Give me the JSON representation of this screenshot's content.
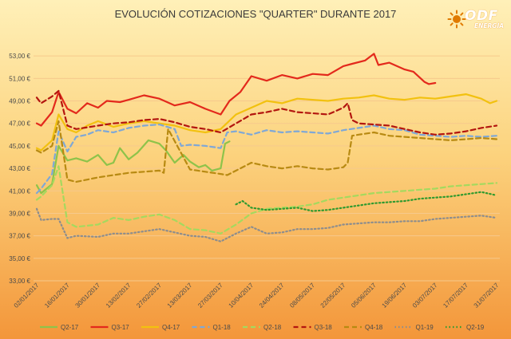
{
  "chart_data": {
    "type": "line",
    "title": "EVOLUCIÓN COTIZACIONES \"QUARTER\" DURANTE 2017",
    "y_tick_labels": [
      "33,00 €",
      "35,00 €",
      "37,00 €",
      "39,00 €",
      "41,00 €",
      "43,00 €",
      "45,00 €",
      "47,00 €",
      "49,00 €",
      "51,00 €",
      "53,00 €"
    ],
    "y_ticks": [
      33,
      35,
      37,
      39,
      41,
      43,
      45,
      47,
      49,
      51,
      53
    ],
    "ylim": [
      33,
      55
    ],
    "x_tick_labels": [
      "02/01/2017",
      "16/01/2017",
      "30/01/2017",
      "13/02/2017",
      "27/02/2017",
      "13/03/2017",
      "27/03/2017",
      "10/04/2017",
      "24/04/2017",
      "08/05/2017",
      "22/05/2017",
      "05/06/2017",
      "19/06/2017",
      "03/07/2017",
      "17/07/2017",
      "31/07/2017"
    ],
    "x_range": [
      "02/01/2017",
      "31/07/2017"
    ],
    "grid": true,
    "legend": "bottom",
    "series": [
      {
        "name": "Q2-17",
        "color": "#8ec34a",
        "dash": "solid",
        "dates": [
          "02/01/2017",
          "04/01/2017",
          "09/01/2017",
          "12/01/2017",
          "16/01/2017",
          "20/01/2017",
          "25/01/2017",
          "30/01/2017",
          "03/02/2017",
          "06/02/2017",
          "09/02/2017",
          "13/02/2017",
          "17/02/2017",
          "22/02/2017",
          "27/02/2017",
          "02/03/2017",
          "06/03/2017",
          "10/03/2017",
          "13/03/2017",
          "17/03/2017",
          "20/03/2017",
          "23/03/2017",
          "27/03/2017",
          "29/03/2017",
          "31/03/2017"
        ],
        "values": [
          41.5,
          40.8,
          41.6,
          45.0,
          43.7,
          43.9,
          43.6,
          44.2,
          43.3,
          43.5,
          44.8,
          43.8,
          44.4,
          45.5,
          45.2,
          44.6,
          43.5,
          44.2,
          43.6,
          43.1,
          43.3,
          42.8,
          43.0,
          45.2,
          45.4
        ]
      },
      {
        "name": "Q3-17",
        "color": "#e3291c",
        "dash": "solid",
        "dates": [
          "02/01/2017",
          "04/01/2017",
          "09/01/2017",
          "12/01/2017",
          "16/01/2017",
          "20/01/2017",
          "25/01/2017",
          "30/01/2017",
          "03/02/2017",
          "09/02/2017",
          "13/02/2017",
          "20/02/2017",
          "27/02/2017",
          "06/03/2017",
          "13/03/2017",
          "20/03/2017",
          "27/03/2017",
          "31/03/2017",
          "05/04/2017",
          "10/04/2017",
          "17/04/2017",
          "24/04/2017",
          "01/05/2017",
          "08/05/2017",
          "15/05/2017",
          "22/05/2017",
          "26/05/2017",
          "01/06/2017",
          "05/06/2017",
          "07/06/2017",
          "12/06/2017",
          "19/06/2017",
          "23/06/2017",
          "28/06/2017",
          "30/06/2017",
          "03/07/2017"
        ],
        "values": [
          47.0,
          46.8,
          48.0,
          49.8,
          48.3,
          47.9,
          48.8,
          48.4,
          49.0,
          48.9,
          49.1,
          49.5,
          49.2,
          48.6,
          48.9,
          48.3,
          47.8,
          49.0,
          49.8,
          51.2,
          50.8,
          51.3,
          51.0,
          51.4,
          51.3,
          52.1,
          52.3,
          52.6,
          53.2,
          52.2,
          52.4,
          51.8,
          51.6,
          50.7,
          50.5,
          50.6
        ]
      },
      {
        "name": "Q4-17",
        "color": "#f2c10f",
        "dash": "solid",
        "dates": [
          "02/01/2017",
          "04/01/2017",
          "09/01/2017",
          "12/01/2017",
          "16/01/2017",
          "20/01/2017",
          "25/01/2017",
          "30/01/2017",
          "06/02/2017",
          "13/02/2017",
          "20/02/2017",
          "27/02/2017",
          "06/03/2017",
          "13/03/2017",
          "20/03/2017",
          "27/03/2017",
          "03/04/2017",
          "10/04/2017",
          "17/04/2017",
          "24/04/2017",
          "01/05/2017",
          "08/05/2017",
          "15/05/2017",
          "22/05/2017",
          "29/05/2017",
          "05/06/2017",
          "12/06/2017",
          "19/06/2017",
          "26/06/2017",
          "03/07/2017",
          "10/07/2017",
          "17/07/2017",
          "24/07/2017",
          "28/07/2017",
          "31/07/2017"
        ],
        "values": [
          44.8,
          44.6,
          45.5,
          47.8,
          46.5,
          46.2,
          46.8,
          47.2,
          46.7,
          47.0,
          47.2,
          47.0,
          46.8,
          46.4,
          46.2,
          46.5,
          47.8,
          48.4,
          49.0,
          48.8,
          49.2,
          49.1,
          49.0,
          49.2,
          49.3,
          49.5,
          49.2,
          49.1,
          49.3,
          49.2,
          49.4,
          49.6,
          49.2,
          48.8,
          49.0
        ]
      },
      {
        "name": "Q1-18",
        "color": "#7fa8d6",
        "dash": "dash",
        "dates": [
          "02/01/2017",
          "04/01/2017",
          "09/01/2017",
          "12/01/2017",
          "16/01/2017",
          "20/01/2017",
          "25/01/2017",
          "30/01/2017",
          "06/02/2017",
          "13/02/2017",
          "20/02/2017",
          "27/02/2017",
          "06/03/2017",
          "09/03/2017",
          "13/03/2017",
          "20/03/2017",
          "27/03/2017",
          "30/03/2017",
          "03/04/2017",
          "10/04/2017",
          "17/04/2017",
          "24/04/2017",
          "01/05/2017",
          "08/05/2017",
          "15/05/2017",
          "22/05/2017",
          "29/05/2017",
          "05/06/2017",
          "12/06/2017",
          "19/06/2017",
          "26/06/2017",
          "03/07/2017",
          "10/07/2017",
          "17/07/2017",
          "24/07/2017",
          "31/07/2017"
        ],
        "values": [
          40.8,
          41.2,
          42.5,
          46.3,
          44.5,
          45.8,
          46.0,
          46.4,
          46.2,
          46.6,
          46.8,
          46.9,
          46.5,
          45.0,
          45.1,
          45.0,
          44.8,
          46.2,
          46.3,
          46.0,
          46.4,
          46.2,
          46.3,
          46.2,
          46.1,
          46.4,
          46.6,
          46.8,
          46.5,
          46.4,
          46.0,
          45.9,
          45.8,
          45.9,
          45.8,
          45.9
        ]
      },
      {
        "name": "Q2-18",
        "color": "#a5d95e",
        "dash": "dash",
        "dates": [
          "02/01/2017",
          "04/01/2017",
          "09/01/2017",
          "12/01/2017",
          "16/01/2017",
          "20/01/2017",
          "30/01/2017",
          "06/02/2017",
          "13/02/2017",
          "20/02/2017",
          "27/02/2017",
          "06/03/2017",
          "13/03/2017",
          "20/03/2017",
          "27/03/2017",
          "03/04/2017",
          "10/04/2017",
          "17/04/2017",
          "24/04/2017",
          "01/05/2017",
          "08/05/2017",
          "15/05/2017",
          "22/05/2017",
          "29/05/2017",
          "05/06/2017",
          "12/06/2017",
          "19/06/2017",
          "26/06/2017",
          "03/07/2017",
          "10/07/2017",
          "17/07/2017",
          "24/07/2017",
          "31/07/2017"
        ],
        "values": [
          40.2,
          40.5,
          41.5,
          43.2,
          38.2,
          37.8,
          38.0,
          38.6,
          38.4,
          38.7,
          38.9,
          38.4,
          37.6,
          37.5,
          37.2,
          38.0,
          39.0,
          39.4,
          39.5,
          39.6,
          39.8,
          40.2,
          40.4,
          40.6,
          40.8,
          40.9,
          41.0,
          41.1,
          41.2,
          41.4,
          41.5,
          41.6,
          41.7
        ]
      },
      {
        "name": "Q3-18",
        "color": "#b3160f",
        "dash": "dash",
        "dates": [
          "02/01/2017",
          "04/01/2017",
          "09/01/2017",
          "12/01/2017",
          "16/01/2017",
          "20/01/2017",
          "30/01/2017",
          "06/02/2017",
          "13/02/2017",
          "20/02/2017",
          "27/02/2017",
          "06/03/2017",
          "13/03/2017",
          "20/03/2017",
          "27/03/2017",
          "03/04/2017",
          "10/04/2017",
          "17/04/2017",
          "24/04/2017",
          "01/05/2017",
          "08/05/2017",
          "15/05/2017",
          "22/05/2017",
          "24/05/2017",
          "26/05/2017",
          "29/05/2017",
          "05/06/2017",
          "12/06/2017",
          "19/06/2017",
          "26/06/2017",
          "03/07/2017",
          "10/07/2017",
          "17/07/2017",
          "24/07/2017",
          "31/07/2017"
        ],
        "values": [
          49.3,
          48.8,
          49.4,
          49.9,
          46.8,
          46.5,
          46.8,
          47.0,
          47.1,
          47.3,
          47.4,
          47.1,
          46.7,
          46.5,
          46.2,
          47.0,
          47.8,
          48.0,
          48.3,
          48.0,
          47.9,
          47.8,
          48.4,
          48.8,
          47.3,
          47.0,
          46.9,
          46.8,
          46.5,
          46.2,
          46.0,
          46.1,
          46.3,
          46.6,
          46.8
        ]
      },
      {
        "name": "Q4-18",
        "color": "#b88a12",
        "dash": "dash",
        "dates": [
          "02/01/2017",
          "04/01/2017",
          "09/01/2017",
          "12/01/2017",
          "16/01/2017",
          "20/01/2017",
          "30/01/2017",
          "06/02/2017",
          "13/02/2017",
          "20/02/2017",
          "27/02/2017",
          "01/03/2017",
          "03/03/2017",
          "13/03/2017",
          "20/03/2017",
          "27/03/2017",
          "30/03/2017",
          "03/04/2017",
          "10/04/2017",
          "17/04/2017",
          "24/04/2017",
          "01/05/2017",
          "08/05/2017",
          "15/05/2017",
          "22/05/2017",
          "24/05/2017",
          "26/05/2017",
          "29/05/2017",
          "05/06/2017",
          "12/06/2017",
          "19/06/2017",
          "26/06/2017",
          "03/07/2017",
          "10/07/2017",
          "17/07/2017",
          "24/07/2017",
          "31/07/2017"
        ],
        "values": [
          44.6,
          44.4,
          45.0,
          47.2,
          42.0,
          41.8,
          42.2,
          42.4,
          42.6,
          42.7,
          42.8,
          42.6,
          46.5,
          42.9,
          42.7,
          42.5,
          42.4,
          42.8,
          43.5,
          43.2,
          43.0,
          43.2,
          43.0,
          42.9,
          43.1,
          43.5,
          45.9,
          46.0,
          46.2,
          45.9,
          45.8,
          45.7,
          45.6,
          45.5,
          45.6,
          45.7,
          45.6
        ]
      },
      {
        "name": "Q1-19",
        "color": "#8d8d8d",
        "dash": "dot",
        "dates": [
          "02/01/2017",
          "04/01/2017",
          "09/01/2017",
          "12/01/2017",
          "16/01/2017",
          "20/01/2017",
          "30/01/2017",
          "06/02/2017",
          "13/02/2017",
          "20/02/2017",
          "27/02/2017",
          "06/03/2017",
          "13/03/2017",
          "20/03/2017",
          "27/03/2017",
          "03/04/2017",
          "10/04/2017",
          "17/04/2017",
          "24/04/2017",
          "01/05/2017",
          "08/05/2017",
          "15/05/2017",
          "22/05/2017",
          "29/05/2017",
          "05/06/2017",
          "12/06/2017",
          "19/06/2017",
          "26/06/2017",
          "03/07/2017",
          "10/07/2017",
          "17/07/2017",
          "24/07/2017",
          "31/07/2017"
        ],
        "values": [
          39.4,
          38.4,
          38.5,
          38.5,
          36.8,
          37.0,
          36.9,
          37.2,
          37.2,
          37.4,
          37.6,
          37.3,
          37.0,
          36.9,
          36.5,
          37.2,
          37.8,
          37.2,
          37.3,
          37.6,
          37.6,
          37.7,
          38.0,
          38.1,
          38.2,
          38.2,
          38.3,
          38.3,
          38.5,
          38.6,
          38.7,
          38.8,
          38.6
        ]
      },
      {
        "name": "Q2-19",
        "color": "#2f9a2f",
        "dash": "dot",
        "dates": [
          "03/04/2017",
          "06/04/2017",
          "10/04/2017",
          "17/04/2017",
          "24/04/2017",
          "01/05/2017",
          "08/05/2017",
          "15/05/2017",
          "22/05/2017",
          "29/05/2017",
          "05/06/2017",
          "12/06/2017",
          "19/06/2017",
          "26/06/2017",
          "03/07/2017",
          "10/07/2017",
          "17/07/2017",
          "24/07/2017",
          "31/07/2017"
        ],
        "values": [
          39.8,
          40.1,
          39.5,
          39.3,
          39.4,
          39.5,
          39.2,
          39.3,
          39.5,
          39.7,
          39.9,
          40.0,
          40.1,
          40.3,
          40.4,
          40.5,
          40.7,
          40.9,
          40.6
        ]
      }
    ]
  },
  "logo": {
    "name": "ODF",
    "sub": "ENERGÍA",
    "colors": {
      "text": "#ffffff",
      "sun": "#e07a00"
    }
  },
  "colors": {
    "background_top": "#ffe9a3",
    "background_bottom": "#f39a3d",
    "grid": "#f5c98f",
    "axis_text": "#4a4a4a",
    "title": "#3a3a3a"
  }
}
